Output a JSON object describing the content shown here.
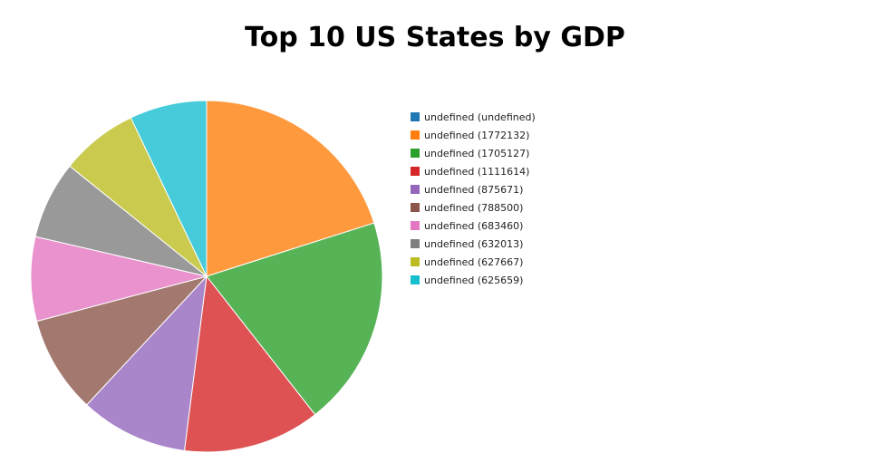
{
  "title": "Top 10 US States by GDP",
  "chart_data": {
    "type": "pie",
    "title": "Top 10 US States by GDP",
    "legend_position": "right",
    "slices": [
      {
        "label": "undefined (undefined)",
        "value": null,
        "color": "#1f77b4"
      },
      {
        "label": "undefined (1772132)",
        "value": 1772132,
        "color": "#ff7f0e"
      },
      {
        "label": "undefined (1705127)",
        "value": 1705127,
        "color": "#2ca02c"
      },
      {
        "label": "undefined (1111614)",
        "value": 1111614,
        "color": "#d62728"
      },
      {
        "label": "undefined (875671)",
        "value": 875671,
        "color": "#9467bd"
      },
      {
        "label": "undefined (788500)",
        "value": 788500,
        "color": "#8c564b"
      },
      {
        "label": "undefined (683460)",
        "value": 683460,
        "color": "#e377c2"
      },
      {
        "label": "undefined (632013)",
        "value": 632013,
        "color": "#7f7f7f"
      },
      {
        "label": "undefined (627667)",
        "value": 627667,
        "color": "#bcbd22"
      },
      {
        "label": "undefined (625659)",
        "value": 625659,
        "color": "#17becf"
      }
    ]
  }
}
